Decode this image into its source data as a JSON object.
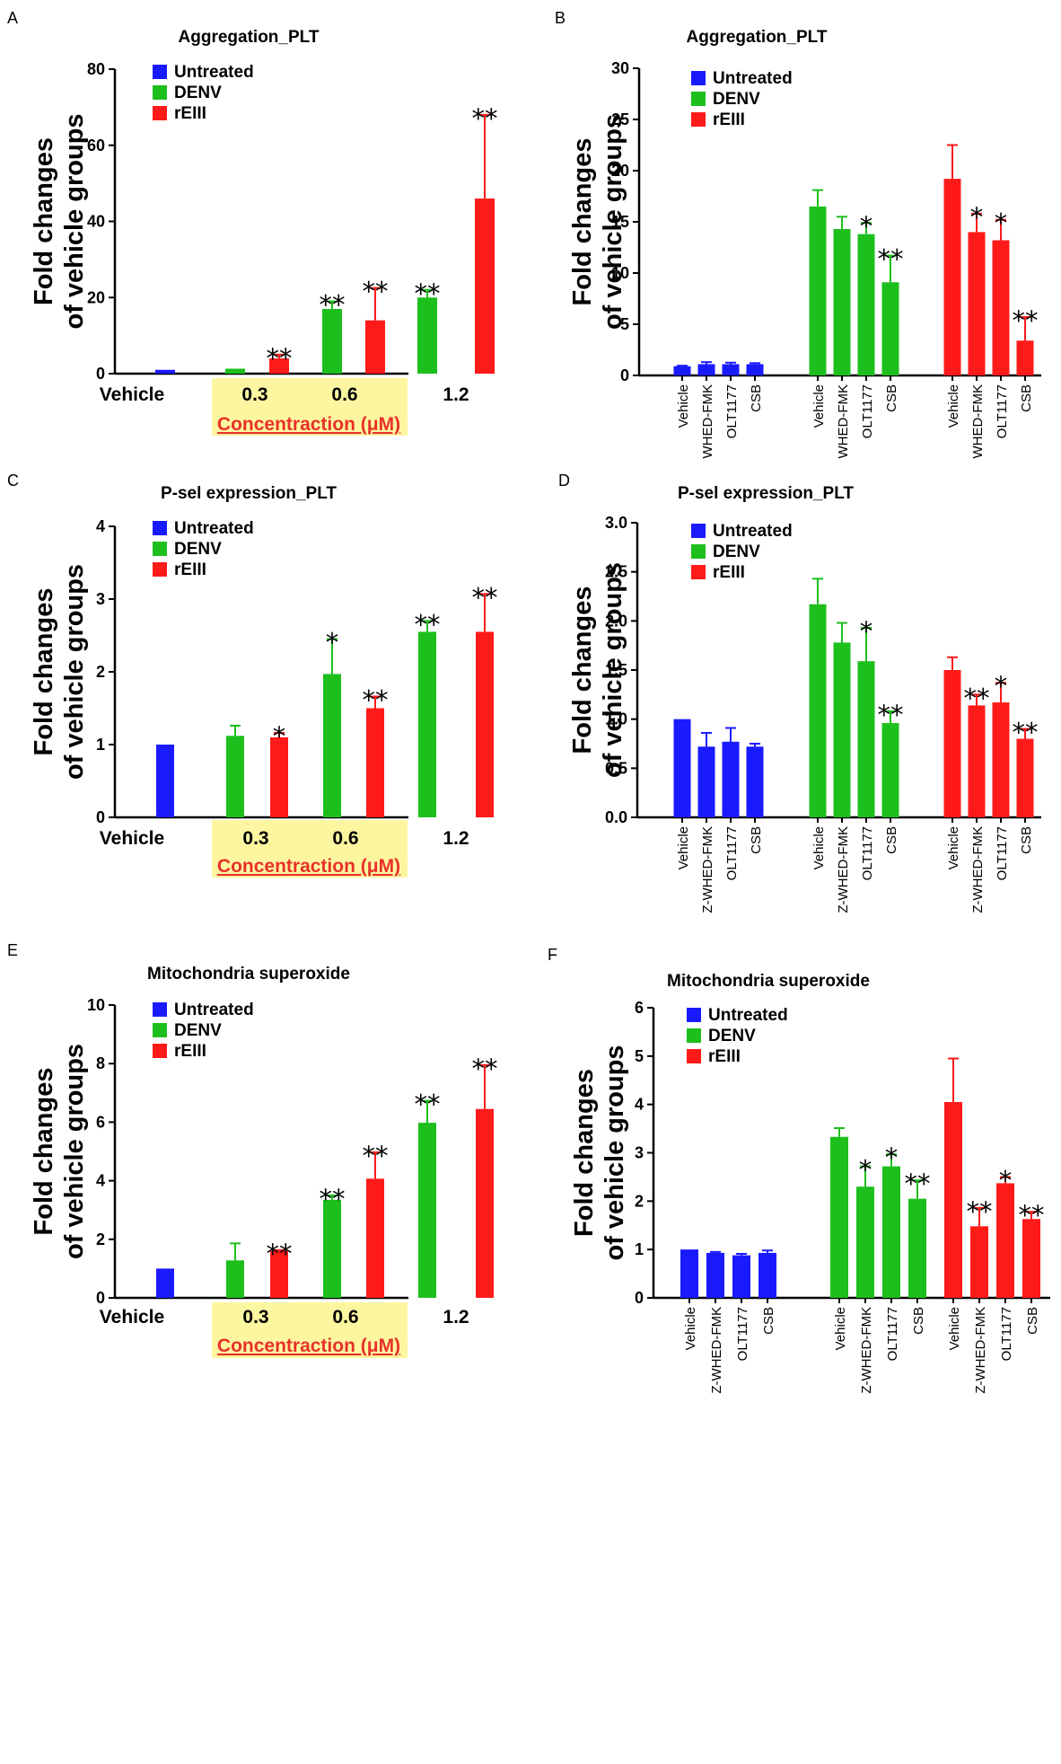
{
  "colors": {
    "untreated": "#1a1aff",
    "denv": "#1dbf1d",
    "reiii": "#ff1a1a",
    "highlight": "#fdf6a0",
    "concentration_text": "#e8312a"
  },
  "legend": [
    "Untreated",
    "DENV",
    "rEIII"
  ],
  "chart_data": [
    {
      "panel": "A",
      "type": "bar",
      "title": "Aggregation_PLT",
      "ylabel": [
        "Fold changes",
        "of vehicle groups"
      ],
      "ylim": [
        0,
        80
      ],
      "yticks": [
        0,
        20,
        40,
        60,
        80
      ],
      "ytick_labels": [
        "0",
        "20",
        "40",
        "60",
        "80"
      ],
      "group_labels": [
        "Vehicle",
        "0.3",
        "0.6",
        "1.2"
      ],
      "xlabel": "Concentraction (μM)",
      "bars": [
        {
          "series": "Untreated",
          "value": 1,
          "err": 0,
          "sig": ""
        },
        {
          "series": "DENV",
          "value": 1.3,
          "err": 0,
          "sig": ""
        },
        {
          "series": "rEIII",
          "value": 4,
          "err": 1,
          "sig": "**"
        },
        {
          "series": "DENV",
          "value": 17,
          "err": 2,
          "sig": "**"
        },
        {
          "series": "rEIII",
          "value": 14,
          "err": 8.5,
          "sig": "**"
        },
        {
          "series": "DENV",
          "value": 20,
          "err": 2,
          "sig": "**"
        },
        {
          "series": "rEIII",
          "value": 46,
          "err": 22,
          "sig": "**"
        }
      ]
    },
    {
      "panel": "B",
      "type": "bar",
      "title": "Aggregation_PLT",
      "ylabel": [
        "Fold changes",
        "of vehicle groups"
      ],
      "ylim": [
        0,
        30
      ],
      "yticks": [
        0,
        5,
        10,
        15,
        20,
        25,
        30
      ],
      "ytick_labels": [
        "0",
        "5",
        "10",
        "15",
        "20",
        "25",
        "30"
      ],
      "groups": [
        {
          "series": "Untreated",
          "labels": [
            "Vehicle",
            "WHED-FMK",
            "OLT1177",
            "CSB"
          ],
          "values": [
            0.9,
            1.1,
            1.1,
            1.1
          ],
          "errs": [
            0.05,
            0.2,
            0.15,
            0.1
          ],
          "sig": [
            "",
            "",
            "",
            ""
          ]
        },
        {
          "series": "DENV",
          "labels": [
            "Vehicle",
            "WHED-FMK",
            "OLT1177",
            "CSB"
          ],
          "values": [
            16.5,
            14.3,
            13.8,
            9.1
          ],
          "errs": [
            1.6,
            1.2,
            1.1,
            2.6
          ],
          "sig": [
            "",
            "",
            "*",
            "**"
          ]
        },
        {
          "series": "rEIII",
          "labels": [
            "Vehicle",
            "WHED-FMK",
            "OLT1177",
            "CSB"
          ],
          "values": [
            19.2,
            14,
            13.2,
            3.4
          ],
          "errs": [
            3.3,
            1.8,
            2,
            2.3
          ],
          "sig": [
            "",
            "*",
            "*",
            "**"
          ]
        }
      ]
    },
    {
      "panel": "C",
      "type": "bar",
      "title": "P-sel expression_PLT",
      "ylabel": [
        "Fold changes",
        "of vehicle groups"
      ],
      "ylim": [
        0,
        4
      ],
      "yticks": [
        0,
        1,
        2,
        3,
        4
      ],
      "ytick_labels": [
        "0",
        "1",
        "2",
        "3",
        "4"
      ],
      "group_labels": [
        "Vehicle",
        "0.3",
        "0.6",
        "1.2"
      ],
      "xlabel": "Concentraction (μM)",
      "bars": [
        {
          "series": "Untreated",
          "value": 1,
          "err": 0,
          "sig": ""
        },
        {
          "series": "DENV",
          "value": 1.12,
          "err": 0.14,
          "sig": ""
        },
        {
          "series": "rEIII",
          "value": 1.1,
          "err": 0.06,
          "sig": "*"
        },
        {
          "series": "DENV",
          "value": 1.97,
          "err": 0.48,
          "sig": "*"
        },
        {
          "series": "rEIII",
          "value": 1.5,
          "err": 0.16,
          "sig": "**"
        },
        {
          "series": "DENV",
          "value": 2.55,
          "err": 0.15,
          "sig": "**"
        },
        {
          "series": "rEIII",
          "value": 2.55,
          "err": 0.52,
          "sig": "**"
        }
      ]
    },
    {
      "panel": "D",
      "type": "bar",
      "title": "P-sel expression_PLT",
      "ylabel": [
        "Fold changes",
        "of vehicle groups"
      ],
      "ylim": [
        0,
        3
      ],
      "yticks": [
        0,
        0.5,
        1,
        1.5,
        2,
        2.5,
        3
      ],
      "ytick_labels": [
        "0.0",
        "0.5",
        "1.0",
        "1.5",
        "2.0",
        "2.5",
        "3.0"
      ],
      "groups": [
        {
          "series": "Untreated",
          "labels": [
            "Vehicle",
            "Z-WHED-FMK",
            "OLT1177",
            "CSB"
          ],
          "values": [
            1,
            0.72,
            0.77,
            0.72
          ],
          "errs": [
            0,
            0.14,
            0.14,
            0.03
          ],
          "sig": [
            "",
            "",
            "",
            ""
          ]
        },
        {
          "series": "DENV",
          "labels": [
            "Vehicle",
            "Z-WHED-FMK",
            "OLT1177",
            "CSB"
          ],
          "values": [
            2.17,
            1.78,
            1.59,
            0.96
          ],
          "errs": [
            0.26,
            0.2,
            0.34,
            0.12
          ],
          "sig": [
            "",
            "",
            "*",
            "**"
          ]
        },
        {
          "series": "rEIII",
          "labels": [
            "Vehicle",
            "Z-WHED-FMK",
            "OLT1177",
            "CSB"
          ],
          "values": [
            1.5,
            1.14,
            1.17,
            0.8
          ],
          "errs": [
            0.13,
            0.11,
            0.2,
            0.1
          ],
          "sig": [
            "",
            "**",
            "*",
            "**"
          ]
        }
      ]
    },
    {
      "panel": "E",
      "type": "bar",
      "title": "Mitochondria superoxide",
      "ylabel": [
        "Fold changes",
        "of vehicle groups"
      ],
      "ylim": [
        0,
        10
      ],
      "yticks": [
        0,
        2,
        4,
        6,
        8,
        10
      ],
      "ytick_labels": [
        "0",
        "2",
        "4",
        "6",
        "8",
        "10"
      ],
      "group_labels": [
        "Vehicle",
        "0.3",
        "0.6",
        "1.2"
      ],
      "xlabel": "Concentraction (μM)",
      "bars": [
        {
          "series": "Untreated",
          "value": 1,
          "err": 0,
          "sig": ""
        },
        {
          "series": "DENV",
          "value": 1.28,
          "err": 0.58,
          "sig": ""
        },
        {
          "series": "rEIII",
          "value": 1.6,
          "err": 0.03,
          "sig": "**"
        },
        {
          "series": "DENV",
          "value": 3.35,
          "err": 0.15,
          "sig": "**"
        },
        {
          "series": "rEIII",
          "value": 4.07,
          "err": 0.9,
          "sig": "**"
        },
        {
          "series": "DENV",
          "value": 5.98,
          "err": 0.75,
          "sig": "**"
        },
        {
          "series": "rEIII",
          "value": 6.45,
          "err": 1.5,
          "sig": "**"
        }
      ]
    },
    {
      "panel": "F",
      "type": "bar",
      "title": "Mitochondria superoxide",
      "ylabel": [
        "Fold changes",
        "of vehicle groups"
      ],
      "ylim": [
        0,
        6
      ],
      "yticks": [
        0,
        1,
        2,
        3,
        4,
        5,
        6
      ],
      "ytick_labels": [
        "0",
        "1",
        "2",
        "3",
        "4",
        "5",
        "6"
      ],
      "groups": [
        {
          "series": "Untreated",
          "labels": [
            "Vehicle",
            "Z-WHED-FMK",
            "OLT1177",
            "CSB"
          ],
          "values": [
            1,
            0.93,
            0.88,
            0.93
          ],
          "errs": [
            0,
            0.02,
            0.03,
            0.05
          ],
          "sig": [
            "",
            "",
            "",
            ""
          ]
        },
        {
          "series": "DENV",
          "labels": [
            "Vehicle",
            "Z-WHED-FMK",
            "OLT1177",
            "CSB"
          ],
          "values": [
            3.33,
            2.3,
            2.72,
            2.05
          ],
          "errs": [
            0.18,
            0.42,
            0.25,
            0.38
          ],
          "sig": [
            "",
            "*",
            "*",
            "**"
          ]
        },
        {
          "series": "rEIII",
          "labels": [
            "Vehicle",
            "Z-WHED-FMK",
            "OLT1177",
            "CSB"
          ],
          "values": [
            4.05,
            1.48,
            2.37,
            1.63
          ],
          "errs": [
            0.9,
            0.38,
            0.13,
            0.15
          ],
          "sig": [
            "",
            "**",
            "*",
            "**"
          ]
        }
      ]
    }
  ]
}
